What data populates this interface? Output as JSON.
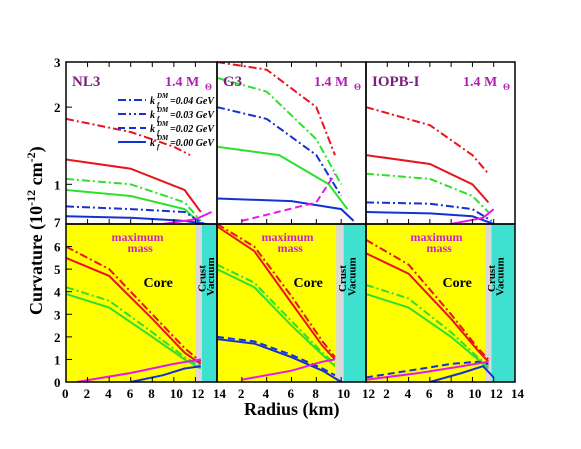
{
  "figure": {
    "ylabel": "Curvature (10",
    "ylabel_exp": "-12",
    "ylabel_unit": " cm",
    "ylabel_unit_exp": "-2",
    "ylabel_close": ")",
    "xlabel": "Radius (km)"
  },
  "legend": {
    "entries": [
      {
        "value": "=0.04 GeV",
        "dash": "dashdot"
      },
      {
        "value": "=0.03 GeV",
        "dash": "dashdotdot"
      },
      {
        "value": "=0.02 GeV",
        "dash": "dashed"
      },
      {
        "value": "=0.00 GeV",
        "dash": "solid"
      }
    ],
    "symbol": "k",
    "sub": "f",
    "sup": "DM"
  },
  "colors": {
    "red": "#e8141e",
    "green": "#2ee02e",
    "blue": "#1432d2",
    "magenta": "#e619e6",
    "title": "#7a1f7a",
    "yellow": "#ffff00",
    "crust": "#d9d9d9",
    "vacuum": "#3ee0d0"
  },
  "chart_data": [
    {
      "type": "line",
      "panel": "top",
      "title": "NL3",
      "mass_label": "1.4 M",
      "mass_sub": "Θ",
      "x": "Radius (km)",
      "xlim": [
        0,
        14
      ],
      "ylim": [
        0.7,
        3
      ],
      "y_scale": "log",
      "y_ticks": [
        "1",
        "2",
        "3"
      ],
      "series": [
        {
          "color": "red",
          "dash": "dashdot",
          "points": [
            [
              0,
              1.8
            ],
            [
              6,
              1.6
            ],
            [
              10,
              1.4
            ],
            [
              11.5,
              1.3
            ]
          ]
        },
        {
          "color": "red",
          "dash": "solid",
          "points": [
            [
              0,
              1.25
            ],
            [
              6,
              1.15
            ],
            [
              11,
              0.95
            ],
            [
              12.5,
              0.78
            ]
          ]
        },
        {
          "color": "green",
          "dash": "dashdot",
          "points": [
            [
              0,
              1.05
            ],
            [
              6,
              1.0
            ],
            [
              11,
              0.85
            ],
            [
              12.5,
              0.72
            ]
          ]
        },
        {
          "color": "green",
          "dash": "solid",
          "points": [
            [
              0,
              0.95
            ],
            [
              6,
              0.9
            ],
            [
              11,
              0.8
            ],
            [
              12.5,
              0.7
            ]
          ]
        },
        {
          "color": "blue",
          "dash": "dashdot",
          "points": [
            [
              0,
              0.82
            ],
            [
              6,
              0.8
            ],
            [
              11,
              0.78
            ],
            [
              12.8,
              0.7
            ]
          ]
        },
        {
          "color": "blue",
          "dash": "solid",
          "points": [
            [
              0,
              0.75
            ],
            [
              6,
              0.74
            ],
            [
              11,
              0.72
            ],
            [
              13,
              0.7
            ]
          ]
        },
        {
          "color": "magenta",
          "dash": "solid",
          "points": [
            [
              9,
              0.7
            ],
            [
              12,
              0.73
            ],
            [
              13.5,
              0.78
            ]
          ]
        }
      ]
    },
    {
      "type": "line",
      "panel": "top",
      "title": "G3",
      "mass_label": "1.4 M",
      "mass_sub": "Θ",
      "xlim": [
        0,
        12
      ],
      "ylim": [
        0.7,
        3
      ],
      "y_scale": "log",
      "series": [
        {
          "color": "red",
          "dash": "dashdot",
          "points": [
            [
              0,
              3.0
            ],
            [
              4,
              2.8
            ],
            [
              8,
              2.0
            ],
            [
              9.5,
              1.3
            ]
          ]
        },
        {
          "color": "green",
          "dash": "dashdot",
          "points": [
            [
              0,
              2.6
            ],
            [
              4,
              2.3
            ],
            [
              8,
              1.5
            ],
            [
              10,
              1.0
            ]
          ]
        },
        {
          "color": "blue",
          "dash": "dashdot",
          "points": [
            [
              0,
              2.0
            ],
            [
              4,
              1.8
            ],
            [
              8,
              1.3
            ],
            [
              10,
              0.9
            ]
          ]
        },
        {
          "color": "green",
          "dash": "solid",
          "points": [
            [
              0,
              1.4
            ],
            [
              5,
              1.3
            ],
            [
              9,
              1.0
            ],
            [
              10.5,
              0.8
            ]
          ]
        },
        {
          "color": "blue",
          "dash": "solid",
          "points": [
            [
              0,
              0.88
            ],
            [
              6,
              0.86
            ],
            [
              10,
              0.8
            ],
            [
              11,
              0.72
            ]
          ]
        },
        {
          "color": "magenta",
          "dash": "dashed",
          "points": [
            [
              2,
              0.72
            ],
            [
              8,
              0.85
            ],
            [
              9.5,
              1.1
            ]
          ]
        }
      ]
    },
    {
      "type": "line",
      "panel": "top",
      "title": "IOPB-I",
      "mass_label": "1.4 M",
      "mass_sub": "Θ",
      "xlim": [
        0,
        14
      ],
      "ylim": [
        0.7,
        3
      ],
      "y_scale": "log",
      "series": [
        {
          "color": "red",
          "dash": "dashdot",
          "points": [
            [
              0,
              2.0
            ],
            [
              6,
              1.7
            ],
            [
              10,
              1.3
            ],
            [
              11.5,
              1.1
            ]
          ]
        },
        {
          "color": "red",
          "dash": "solid",
          "points": [
            [
              0,
              1.3
            ],
            [
              6,
              1.2
            ],
            [
              10,
              1.0
            ],
            [
              11.5,
              0.85
            ]
          ]
        },
        {
          "color": "green",
          "dash": "dashdot",
          "points": [
            [
              0,
              1.1
            ],
            [
              6,
              1.05
            ],
            [
              10,
              0.9
            ],
            [
              11.5,
              0.78
            ]
          ]
        },
        {
          "color": "blue",
          "dash": "dashdot",
          "points": [
            [
              0,
              0.85
            ],
            [
              6,
              0.84
            ],
            [
              10,
              0.8
            ],
            [
              11.8,
              0.72
            ]
          ]
        },
        {
          "color": "blue",
          "dash": "solid",
          "points": [
            [
              0,
              0.78
            ],
            [
              6,
              0.77
            ],
            [
              10,
              0.75
            ],
            [
              12,
              0.7
            ]
          ]
        },
        {
          "color": "magenta",
          "dash": "solid",
          "points": [
            [
              8,
              0.7
            ],
            [
              11,
              0.74
            ],
            [
              12,
              0.8
            ]
          ]
        }
      ]
    },
    {
      "type": "line",
      "panel": "bottom",
      "x": "Radius (km)",
      "xlim": [
        0,
        14
      ],
      "ylim": [
        0,
        7
      ],
      "y_ticks": [
        "0",
        "1",
        "2",
        "3",
        "4",
        "5",
        "6",
        "7"
      ],
      "x_ticks": [
        "0",
        "2",
        "4",
        "6",
        "8",
        "10",
        "12",
        "14"
      ],
      "regions": {
        "core_label": "Core",
        "crust_label": "Crust",
        "vacuum_label": "Vacuum",
        "max_label": "maximum\nmass",
        "crust_start": 12.0,
        "vacuum_start": 12.6
      },
      "series": [
        {
          "color": "red",
          "dash": "dashdot",
          "points": [
            [
              0,
              6.0
            ],
            [
              4,
              5.0
            ],
            [
              8,
              3.0
            ],
            [
              11,
              1.5
            ],
            [
              12.5,
              0.9
            ]
          ]
        },
        {
          "color": "red",
          "dash": "solid",
          "points": [
            [
              0,
              5.5
            ],
            [
              4,
              4.7
            ],
            [
              8,
              2.8
            ],
            [
              11,
              1.3
            ],
            [
              12.5,
              0.8
            ]
          ]
        },
        {
          "color": "green",
          "dash": "dashdot",
          "points": [
            [
              0,
              4.2
            ],
            [
              4,
              3.6
            ],
            [
              8,
              2.2
            ],
            [
              11,
              1.1
            ],
            [
              12.5,
              0.7
            ]
          ]
        },
        {
          "color": "green",
          "dash": "solid",
          "points": [
            [
              0,
              3.9
            ],
            [
              4,
              3.3
            ],
            [
              8,
              2.0
            ],
            [
              11,
              1.0
            ],
            [
              12.5,
              0.6
            ]
          ]
        },
        {
          "color": "magenta",
          "dash": "solid",
          "points": [
            [
              1,
              0.0
            ],
            [
              6,
              0.4
            ],
            [
              10,
              0.8
            ],
            [
              12.5,
              1.0
            ]
          ]
        },
        {
          "color": "blue",
          "dash": "solid",
          "points": [
            [
              6,
              0.0
            ],
            [
              9,
              0.3
            ],
            [
              11,
              0.6
            ],
            [
              12.5,
              0.7
            ]
          ]
        }
      ]
    },
    {
      "type": "line",
      "panel": "bottom",
      "xlim": [
        0,
        12
      ],
      "ylim": [
        0,
        7
      ],
      "x_ticks": [
        "2",
        "4",
        "6",
        "8",
        "10",
        "12"
      ],
      "regions": {
        "core_label": "Core",
        "crust_label": "Crust",
        "vacuum_label": "Vacuum",
        "max_label": "maximum\nmass",
        "crust_start": 9.6,
        "vacuum_start": 10.2
      },
      "series": [
        {
          "color": "red",
          "dash": "dashdot",
          "points": [
            [
              0,
              7.0
            ],
            [
              3,
              6.0
            ],
            [
              6,
              3.8
            ],
            [
              8.5,
              1.8
            ],
            [
              9.5,
              1.1
            ]
          ]
        },
        {
          "color": "red",
          "dash": "solid",
          "points": [
            [
              0,
              6.9
            ],
            [
              3,
              5.8
            ],
            [
              6,
              3.5
            ],
            [
              8.5,
              1.6
            ],
            [
              9.5,
              1.0
            ]
          ]
        },
        {
          "color": "green",
          "dash": "dashdot",
          "points": [
            [
              0,
              5.2
            ],
            [
              3,
              4.4
            ],
            [
              6,
              2.7
            ],
            [
              8.5,
              1.3
            ],
            [
              9.5,
              0.8
            ]
          ]
        },
        {
          "color": "green",
          "dash": "solid",
          "points": [
            [
              0,
              5.0
            ],
            [
              3,
              4.2
            ],
            [
              6,
              2.5
            ],
            [
              8.5,
              1.2
            ],
            [
              9.5,
              0.7
            ]
          ]
        },
        {
          "color": "blue",
          "dash": "dashed",
          "points": [
            [
              0,
              2.0
            ],
            [
              3,
              1.8
            ],
            [
              6,
              1.2
            ],
            [
              8.5,
              0.6
            ],
            [
              9.5,
              0.3
            ]
          ]
        },
        {
          "color": "blue",
          "dash": "solid",
          "points": [
            [
              0,
              1.9
            ],
            [
              3,
              1.7
            ],
            [
              6,
              1.1
            ],
            [
              8.5,
              0.5
            ],
            [
              10,
              0.0
            ]
          ]
        },
        {
          "color": "magenta",
          "dash": "solid",
          "points": [
            [
              2,
              0.1
            ],
            [
              6,
              0.5
            ],
            [
              8.5,
              0.9
            ],
            [
              9.5,
              1.0
            ]
          ]
        }
      ]
    },
    {
      "type": "line",
      "panel": "bottom",
      "xlim": [
        0,
        14
      ],
      "ylim": [
        0,
        7
      ],
      "x_ticks": [
        "2",
        "4",
        "6",
        "8",
        "10",
        "12",
        "14"
      ],
      "regions": {
        "core_label": "Core",
        "crust_label": "Crust",
        "vacuum_label": "Vacuum",
        "max_label": "maximum\nmass",
        "crust_start": 11.2,
        "vacuum_start": 11.8
      },
      "series": [
        {
          "color": "red",
          "dash": "dashdot",
          "points": [
            [
              0,
              6.3
            ],
            [
              4,
              5.2
            ],
            [
              8,
              3.0
            ],
            [
              10.5,
              1.5
            ],
            [
              11.5,
              1.0
            ]
          ]
        },
        {
          "color": "red",
          "dash": "solid",
          "points": [
            [
              0,
              5.7
            ],
            [
              4,
              4.8
            ],
            [
              8,
              2.8
            ],
            [
              10.5,
              1.4
            ],
            [
              11.5,
              0.9
            ]
          ]
        },
        {
          "color": "green",
          "dash": "dashdot",
          "points": [
            [
              0,
              4.3
            ],
            [
              4,
              3.7
            ],
            [
              8,
              2.2
            ],
            [
              10.5,
              1.1
            ],
            [
              11.5,
              0.7
            ]
          ]
        },
        {
          "color": "green",
          "dash": "solid",
          "points": [
            [
              0,
              3.9
            ],
            [
              4,
              3.3
            ],
            [
              8,
              2.0
            ],
            [
              10.5,
              1.0
            ],
            [
              11.5,
              0.6
            ]
          ]
        },
        {
          "color": "blue",
          "dash": "dashed",
          "points": [
            [
              0,
              0.2
            ],
            [
              4,
              0.5
            ],
            [
              8,
              0.8
            ],
            [
              10.5,
              0.9
            ],
            [
              11.5,
              0.8
            ]
          ]
        },
        {
          "color": "blue",
          "dash": "solid",
          "points": [
            [
              6,
              0.0
            ],
            [
              9,
              0.4
            ],
            [
              11,
              0.7
            ],
            [
              12,
              0.2
            ]
          ]
        },
        {
          "color": "magenta",
          "dash": "solid",
          "points": [
            [
              0,
              0.1
            ],
            [
              5,
              0.4
            ],
            [
              9,
              0.7
            ],
            [
              11.5,
              0.9
            ]
          ]
        }
      ]
    }
  ]
}
